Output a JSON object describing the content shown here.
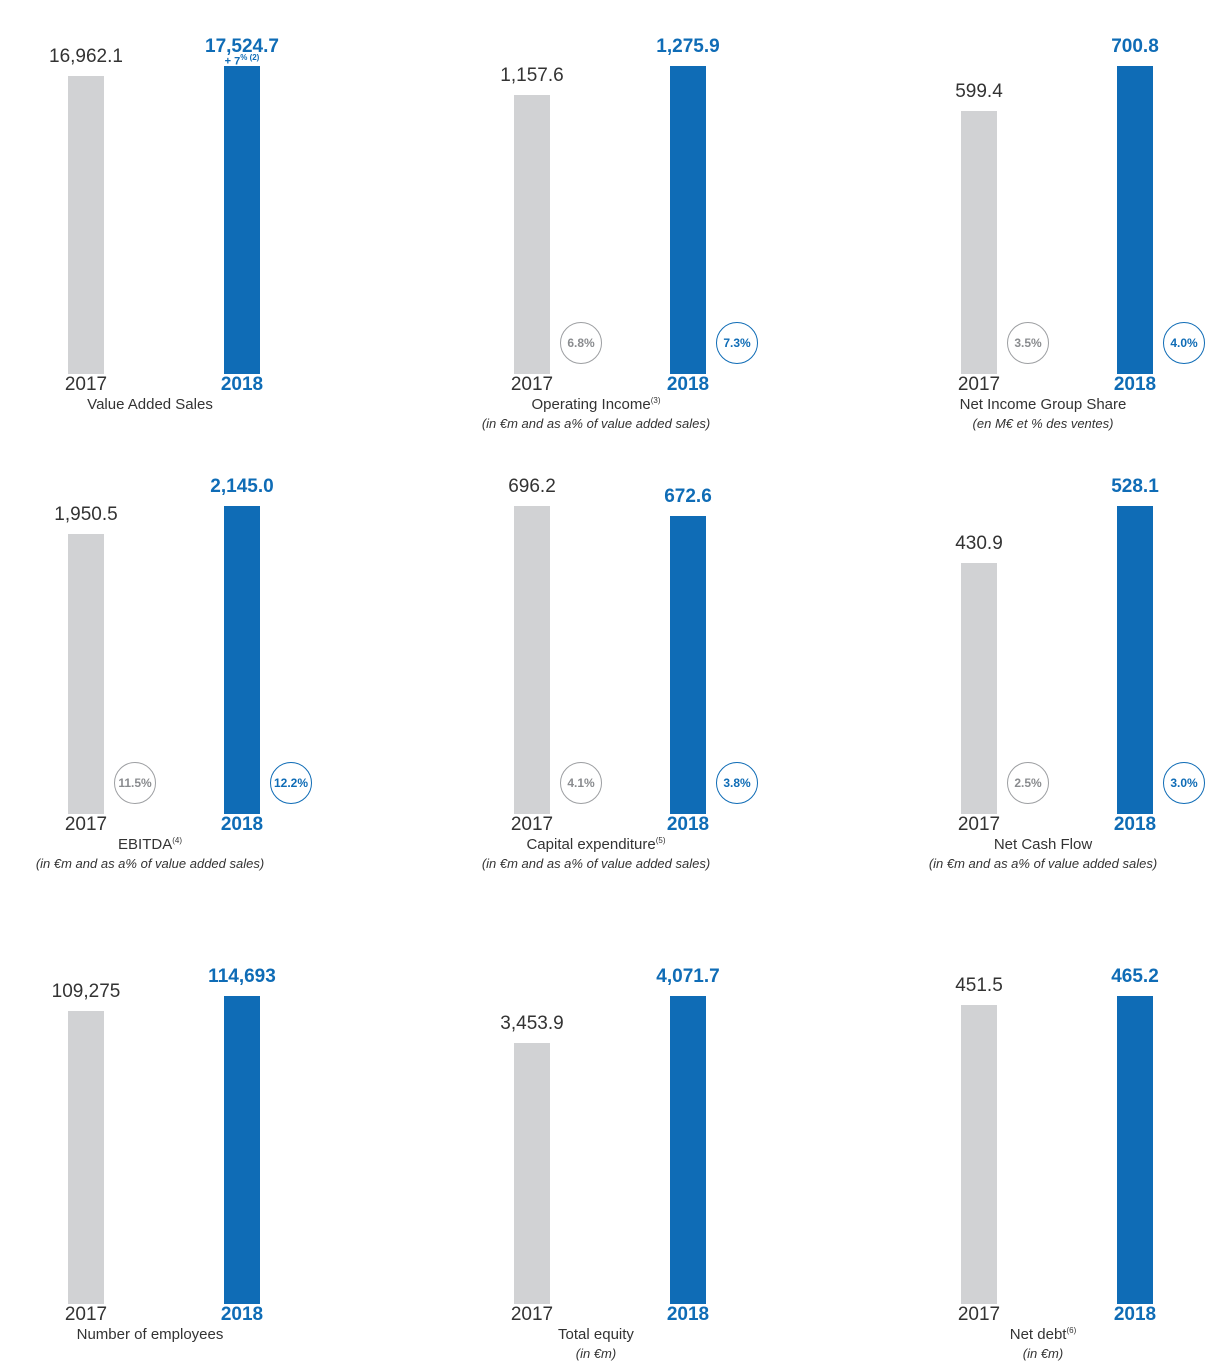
{
  "colors": {
    "prior_year_bar": "#d1d2d4",
    "current_year_bar": "#0f6cb6",
    "prior_badge": "#9d9fa2",
    "current_badge": "#0f6cb6"
  },
  "chart_data": [
    {
      "type": "bar",
      "title": "Value Added Sales",
      "footnote": "",
      "subtitle": "",
      "categories": [
        "2017",
        "2018"
      ],
      "values": [
        16962.1,
        17524.7
      ],
      "value_labels": [
        "16,962.1",
        "17,524.7"
      ],
      "growth_label": "+ 7",
      "growth_sup": "% (2)",
      "badges": []
    },
    {
      "type": "bar",
      "title": "Operating Income",
      "footnote": "(3)",
      "subtitle": "(in €m and as a% of value added sales)",
      "categories": [
        "2017",
        "2018"
      ],
      "values": [
        1157.6,
        1275.9
      ],
      "value_labels": [
        "1,157.6",
        "1,275.9"
      ],
      "badges": [
        "6.8%",
        "7.3%"
      ]
    },
    {
      "type": "bar",
      "title": "Net Income Group Share",
      "footnote": "",
      "subtitle": "(en M€ et % des ventes)",
      "categories": [
        "2017",
        "2018"
      ],
      "values": [
        599.4,
        700.8
      ],
      "value_labels": [
        "599.4",
        "700.8"
      ],
      "badges": [
        "3.5%",
        "4.0%"
      ]
    },
    {
      "type": "bar",
      "title": "EBITDA",
      "footnote": "(4)",
      "subtitle": "(in €m and as a% of value added sales)",
      "categories": [
        "2017",
        "2018"
      ],
      "values": [
        1950.5,
        2145.0
      ],
      "value_labels": [
        "1,950.5",
        "2,145.0"
      ],
      "badges": [
        "11.5%",
        "12.2%"
      ]
    },
    {
      "type": "bar",
      "title": "Capital expenditure",
      "footnote": "(5)",
      "subtitle": "(in €m and as a% of value added sales)",
      "categories": [
        "2017",
        "2018"
      ],
      "values": [
        696.2,
        672.6
      ],
      "value_labels": [
        "696.2",
        "672.6"
      ],
      "badges": [
        "4.1%",
        "3.8%"
      ]
    },
    {
      "type": "bar",
      "title": "Net Cash Flow",
      "footnote": "",
      "subtitle": "(in €m and as a% of value added sales)",
      "categories": [
        "2017",
        "2018"
      ],
      "values": [
        430.9,
        528.1
      ],
      "value_labels": [
        "430.9",
        "528.1"
      ],
      "badges": [
        "2.5%",
        "3.0%"
      ]
    },
    {
      "type": "bar",
      "title": "Number of employees",
      "footnote": "",
      "subtitle": "",
      "categories": [
        "2017",
        "2018"
      ],
      "values": [
        109275,
        114693
      ],
      "value_labels": [
        "109,275",
        "114,693"
      ],
      "badges": []
    },
    {
      "type": "bar",
      "title": "Total equity",
      "footnote": "",
      "subtitle": "(in €m)",
      "categories": [
        "2017",
        "2018"
      ],
      "values": [
        3453.9,
        4071.7
      ],
      "value_labels": [
        "3,453.9",
        "4,071.7"
      ],
      "badges": []
    },
    {
      "type": "bar",
      "title": "Net debt",
      "footnote": "(6)",
      "subtitle": "(in €m)",
      "categories": [
        "2017",
        "2018"
      ],
      "values": [
        451.5,
        465.2
      ],
      "value_labels": [
        "451.5",
        "465.2"
      ],
      "badges": []
    }
  ]
}
